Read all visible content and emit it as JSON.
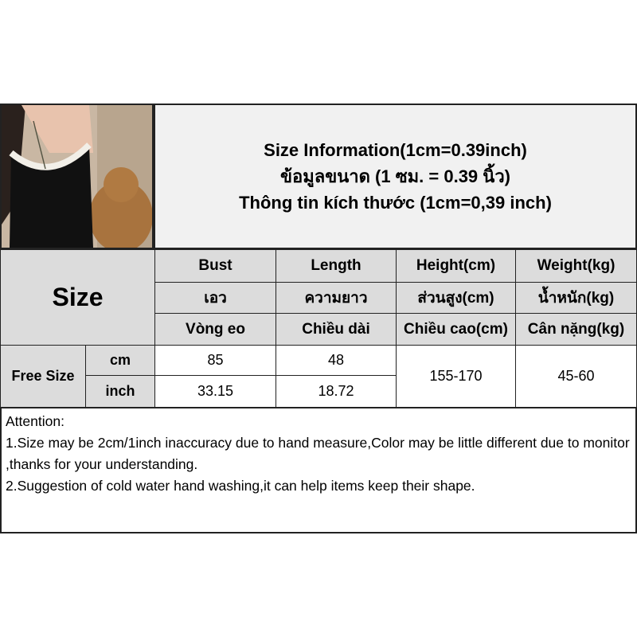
{
  "header": {
    "line1": "Size Information(1cm=0.39inch)",
    "line2": "ข้อมูลขนาด (1 ซม. = 0.39 นิ้ว)",
    "line3": "Thông tin kích thước (1cm=0,39 inch)"
  },
  "table": {
    "size_label": "Size",
    "columns": [
      {
        "en": "Bust",
        "th": "เอว",
        "vi": "Vòng eo"
      },
      {
        "en": "Length",
        "th": "ความยาว",
        "vi": "Chiều dài"
      },
      {
        "en": "Height(cm)",
        "th": "ส่วนสูง(cm)",
        "vi": "Chiều cao(cm)"
      },
      {
        "en": "Weight(kg)",
        "th": "น้ำหนัก(kg)",
        "vi": "Cân nặng(kg)"
      }
    ],
    "row_label": "Free Size",
    "units": [
      "cm",
      "inch"
    ],
    "cm": {
      "bust": "85",
      "length": "48"
    },
    "inch": {
      "bust": "33.15",
      "length": "18.72"
    },
    "height": "155-170",
    "weight": "45-60"
  },
  "attention": {
    "title": "Attention:",
    "line1": "1.Size may be 2cm/1inch inaccuracy due to hand measure,Color may be little different due to monitor ,thanks for your understanding.",
    "line2": "2.Suggestion of cold water hand washing,it can help items keep their shape."
  }
}
